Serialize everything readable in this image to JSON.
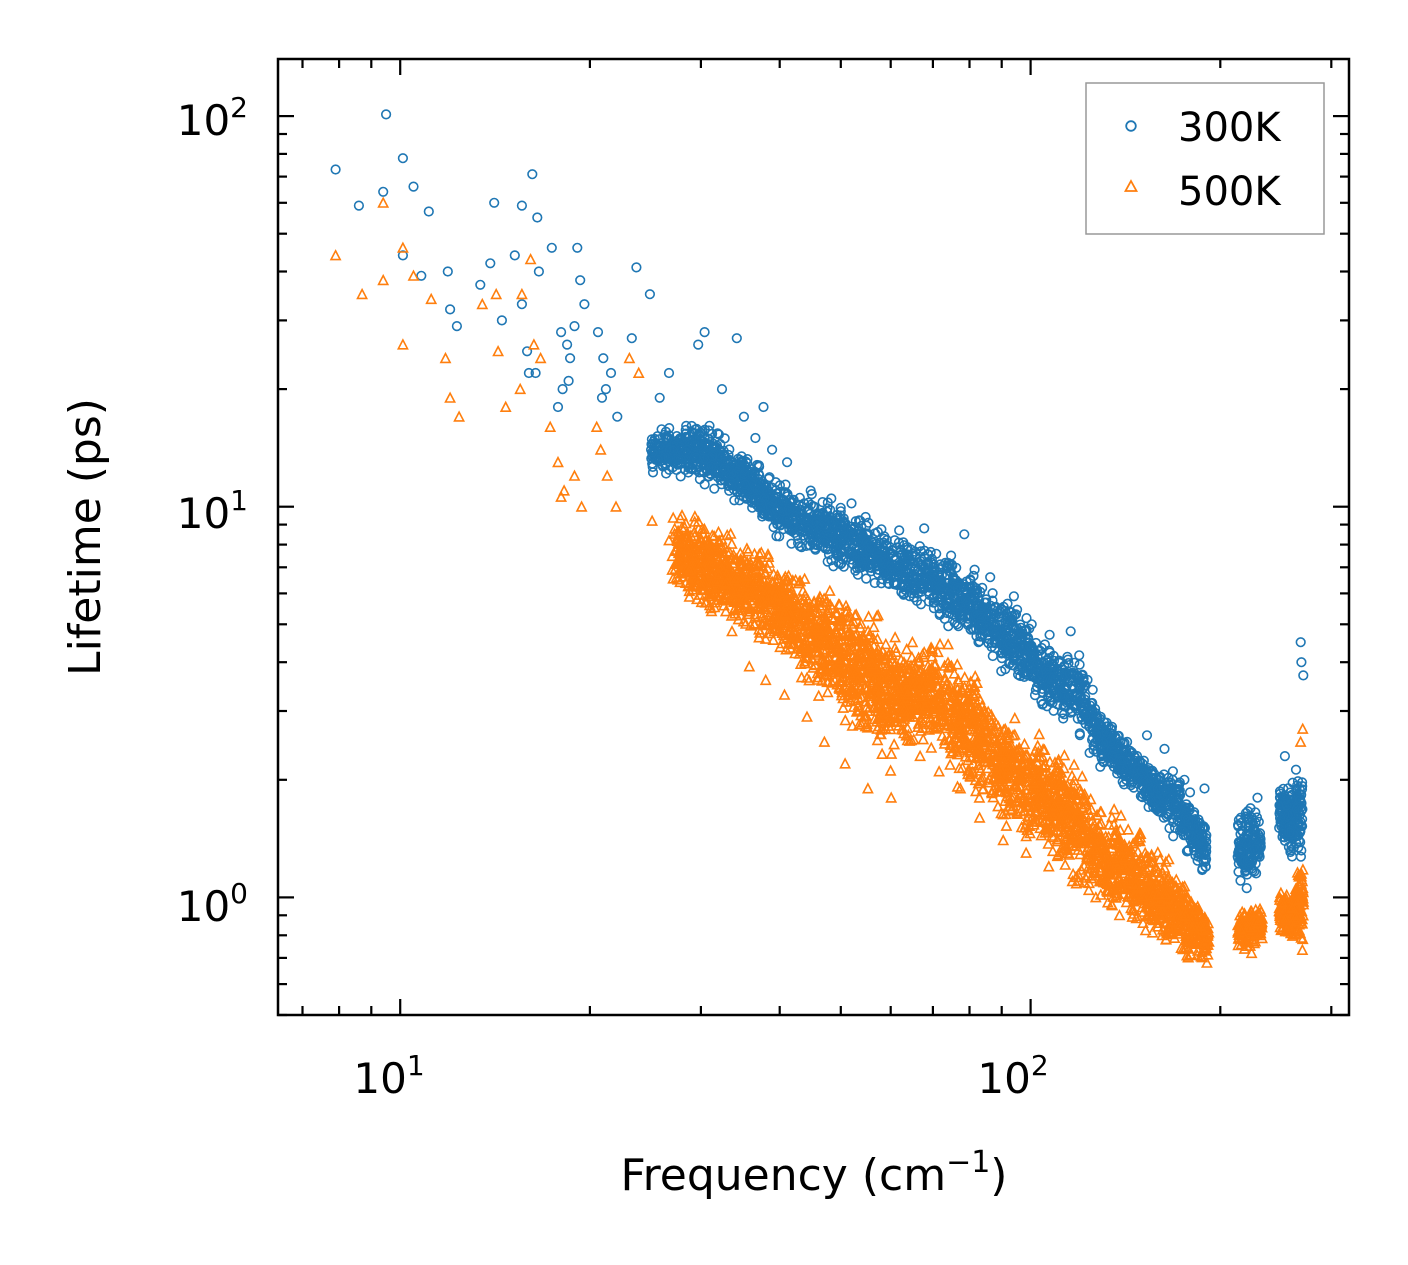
{
  "chart_data": {
    "type": "scatter",
    "title": "",
    "xlabel": "Frequency",
    "xlabel_unit": "(cm",
    "xlabel_unit_exp": "−1",
    "xlabel_unit_close": ")",
    "ylabel": "Lifetime (ps)",
    "xscale": "log",
    "yscale": "log",
    "xlim": [
      6.4,
      320
    ],
    "ylim": [
      0.5,
      140
    ],
    "x_ticks": [
      {
        "value": 10,
        "base": "10",
        "exp": "1"
      },
      {
        "value": 100,
        "base": "10",
        "exp": "2"
      }
    ],
    "y_ticks": [
      {
        "value": 1,
        "base": "10",
        "exp": "0"
      },
      {
        "value": 10,
        "base": "10",
        "exp": "1"
      },
      {
        "value": 100,
        "base": "10",
        "exp": "2"
      }
    ],
    "legend_position": "top-right",
    "series": [
      {
        "name": "300K",
        "marker": "circle-open",
        "color": "#1f77b4",
        "points": [
          [
            7.9,
            73
          ],
          [
            8.6,
            59
          ],
          [
            9.4,
            64
          ],
          [
            9.5,
            101
          ],
          [
            10.1,
            78
          ],
          [
            10.5,
            66
          ],
          [
            11.1,
            57
          ],
          [
            10.1,
            44
          ],
          [
            10.8,
            39
          ],
          [
            11.9,
            40
          ],
          [
            12.0,
            32
          ],
          [
            12.3,
            29
          ],
          [
            13.4,
            37
          ],
          [
            13.9,
            42
          ],
          [
            14.1,
            60
          ],
          [
            14.5,
            30
          ],
          [
            15.2,
            44
          ],
          [
            15.6,
            59
          ],
          [
            15.6,
            33
          ],
          [
            16.2,
            71
          ],
          [
            16.5,
            55
          ],
          [
            16.6,
            40
          ],
          [
            15.9,
            25
          ],
          [
            16.0,
            22
          ],
          [
            16.4,
            22
          ],
          [
            17.4,
            46
          ],
          [
            18.0,
            28
          ],
          [
            18.4,
            26
          ],
          [
            18.6,
            24
          ],
          [
            18.9,
            29
          ],
          [
            19.1,
            46
          ],
          [
            19.3,
            38
          ],
          [
            19.6,
            33
          ],
          [
            18.5,
            21
          ],
          [
            18.1,
            20
          ],
          [
            17.8,
            18
          ],
          [
            20.6,
            28
          ],
          [
            21.0,
            24
          ],
          [
            21.6,
            22
          ],
          [
            21.2,
            20
          ],
          [
            20.9,
            19
          ],
          [
            22.1,
            17
          ],
          [
            23.3,
            27
          ],
          [
            23.7,
            41
          ],
          [
            24.9,
            35
          ],
          [
            26.7,
            22
          ],
          [
            25.8,
            19
          ],
          [
            29.7,
            26
          ],
          [
            30.4,
            28
          ],
          [
            32.4,
            20
          ],
          [
            34.2,
            27
          ],
          [
            35.1,
            17
          ],
          [
            36.6,
            15
          ],
          [
            37.7,
            18
          ],
          [
            38.9,
            14
          ],
          [
            41.1,
            13
          ],
          [
            44.8,
            11
          ],
          [
            48.3,
            10.5
          ],
          [
            52.0,
            10.2
          ],
          [
            55.3,
            9.1
          ],
          [
            61.9,
            8.7
          ],
          [
            67.8,
            8.8
          ],
          [
            74.8,
            7.5
          ],
          [
            78.5,
            8.5
          ],
          [
            81.5,
            6.9
          ],
          [
            86.3,
            6.6
          ],
          [
            94.1,
            5.9
          ],
          [
            100.4,
            5.0
          ],
          [
            107.2,
            4.7
          ],
          [
            115.8,
            4.8
          ],
          [
            120.6,
            3.7
          ],
          [
            125.5,
            3.4
          ],
          [
            132.0,
            2.8
          ],
          [
            142.3,
            2.5
          ],
          [
            153.0,
            2.6
          ],
          [
            163.1,
            2.4
          ],
          [
            175.4,
            2.0
          ],
          [
            188.8,
            1.9
          ],
          [
            215.5,
            1.6
          ],
          [
            229.1,
            1.8
          ],
          [
            253.2,
            2.3
          ],
          [
            268.2,
            4.5
          ],
          [
            268.9,
            4.0
          ],
          [
            270.8,
            3.7
          ]
        ]
      },
      {
        "name": "500K",
        "marker": "triangle-open",
        "color": "#ff7f0e",
        "points": [
          [
            7.9,
            44
          ],
          [
            8.7,
            35
          ],
          [
            9.4,
            60
          ],
          [
            9.4,
            38
          ],
          [
            10.1,
            46
          ],
          [
            10.1,
            26
          ],
          [
            10.5,
            39
          ],
          [
            11.2,
            34
          ],
          [
            11.8,
            24
          ],
          [
            12.0,
            19
          ],
          [
            12.4,
            17
          ],
          [
            13.5,
            33
          ],
          [
            14.2,
            35
          ],
          [
            14.3,
            25
          ],
          [
            14.7,
            18
          ],
          [
            15.5,
            20
          ],
          [
            15.6,
            35
          ],
          [
            16.1,
            43
          ],
          [
            16.3,
            26
          ],
          [
            16.7,
            24
          ],
          [
            17.3,
            16
          ],
          [
            17.8,
            13
          ],
          [
            18.2,
            11
          ],
          [
            18.0,
            10.6
          ],
          [
            18.9,
            12
          ],
          [
            19.4,
            10
          ],
          [
            20.5,
            16
          ],
          [
            20.8,
            14
          ],
          [
            21.3,
            12
          ],
          [
            22.0,
            10
          ],
          [
            23.1,
            24
          ],
          [
            23.9,
            22
          ],
          [
            25.1,
            9.2
          ],
          [
            26.7,
            8.2
          ],
          [
            27.6,
            7.2
          ],
          [
            29.6,
            6.3
          ],
          [
            31.1,
            5.5
          ],
          [
            33.6,
            4.8
          ],
          [
            35.8,
            3.9
          ],
          [
            38.0,
            3.6
          ],
          [
            40.7,
            3.3
          ],
          [
            44.2,
            2.9
          ],
          [
            47.1,
            2.5
          ],
          [
            50.8,
            2.2
          ],
          [
            55.2,
            1.9
          ],
          [
            60.1,
            1.8
          ],
          [
            66.8,
            2.3
          ],
          [
            71.6,
            2.1
          ],
          [
            77.4,
            1.9
          ],
          [
            83.0,
            1.6
          ],
          [
            90.5,
            1.4
          ],
          [
            98.4,
            1.3
          ],
          [
            106.9,
            1.2
          ],
          [
            116.5,
            1.1
          ],
          [
            126.9,
            1.0
          ],
          [
            138.4,
            0.9
          ],
          [
            150.8,
            0.86
          ],
          [
            164.0,
            0.78
          ],
          [
            177.0,
            0.71
          ],
          [
            190.4,
            0.68
          ],
          [
            215.0,
            0.83
          ],
          [
            229.5,
            0.86
          ],
          [
            255.1,
            0.82
          ],
          [
            268.1,
            2.5
          ],
          [
            270.2,
            2.7
          ]
        ]
      }
    ],
    "dense_bands": [
      {
        "series": "300K",
        "x_start": 25,
        "x_end": 190,
        "upper": [
          [
            25,
            16
          ],
          [
            30,
            17
          ],
          [
            35,
            14
          ],
          [
            40,
            12
          ],
          [
            50,
            10.5
          ],
          [
            60,
            8.6
          ],
          [
            70,
            8.3
          ],
          [
            80,
            7.1
          ],
          [
            90,
            6.3
          ],
          [
            100,
            5.2
          ],
          [
            110,
            4.6
          ],
          [
            120,
            4.2
          ],
          [
            130,
            3.1
          ],
          [
            140,
            2.6
          ],
          [
            150,
            2.4
          ],
          [
            160,
            2.2
          ],
          [
            170,
            2.2
          ],
          [
            180,
            1.9
          ],
          [
            190,
            1.6
          ]
        ],
        "lower": [
          [
            25,
            12
          ],
          [
            30,
            11
          ],
          [
            35,
            9.8
          ],
          [
            40,
            8.0
          ],
          [
            50,
            6.8
          ],
          [
            60,
            5.9
          ],
          [
            70,
            5.0
          ],
          [
            80,
            4.4
          ],
          [
            90,
            3.7
          ],
          [
            100,
            3.2
          ],
          [
            110,
            2.8
          ],
          [
            120,
            2.5
          ],
          [
            130,
            2.1
          ],
          [
            140,
            1.9
          ],
          [
            150,
            1.7
          ],
          [
            160,
            1.55
          ],
          [
            170,
            1.35
          ],
          [
            180,
            1.2
          ],
          [
            190,
            1.05
          ]
        ],
        "count": 2600
      },
      {
        "series": "300K",
        "x_start": 213,
        "x_end": 232,
        "upper": [
          [
            213,
            1.7
          ],
          [
            220,
            1.8
          ],
          [
            232,
            1.75
          ]
        ],
        "lower": [
          [
            213,
            1.05
          ],
          [
            220,
            1.0
          ],
          [
            232,
            1.1
          ]
        ],
        "count": 150
      },
      {
        "series": "300K",
        "x_start": 248,
        "x_end": 270,
        "upper": [
          [
            248,
            2.2
          ],
          [
            258,
            2.0
          ],
          [
            270,
            2.4
          ]
        ],
        "lower": [
          [
            248,
            1.3
          ],
          [
            258,
            1.2
          ],
          [
            270,
            1.1
          ]
        ],
        "count": 200
      },
      {
        "series": "500K",
        "x_start": 27,
        "x_end": 192,
        "upper": [
          [
            27,
            10.5
          ],
          [
            32,
            9.2
          ],
          [
            38,
            8.2
          ],
          [
            45,
            6.8
          ],
          [
            52,
            6.2
          ],
          [
            60,
            5.1
          ],
          [
            70,
            5.0
          ],
          [
            80,
            4.2
          ],
          [
            90,
            3.2
          ],
          [
            100,
            2.9
          ],
          [
            110,
            2.6
          ],
          [
            120,
            2.2
          ],
          [
            130,
            1.8
          ],
          [
            140,
            1.7
          ],
          [
            150,
            1.55
          ],
          [
            160,
            1.35
          ],
          [
            170,
            1.25
          ],
          [
            180,
            1.05
          ],
          [
            192,
            0.95
          ]
        ],
        "lower": [
          [
            27,
            6.0
          ],
          [
            32,
            5.0
          ],
          [
            38,
            4.2
          ],
          [
            45,
            3.4
          ],
          [
            52,
            2.6
          ],
          [
            60,
            2.1
          ],
          [
            70,
            2.3
          ],
          [
            80,
            1.75
          ],
          [
            90,
            1.45
          ],
          [
            100,
            1.3
          ],
          [
            110,
            1.15
          ],
          [
            120,
            1.0
          ],
          [
            130,
            0.9
          ],
          [
            140,
            0.82
          ],
          [
            150,
            0.76
          ],
          [
            160,
            0.72
          ],
          [
            170,
            0.7
          ],
          [
            180,
            0.68
          ],
          [
            192,
            0.67
          ]
        ],
        "count": 3200
      },
      {
        "series": "500K",
        "x_start": 213,
        "x_end": 233,
        "upper": [
          [
            213,
            0.92
          ],
          [
            222,
            1.0
          ],
          [
            233,
            0.95
          ]
        ],
        "lower": [
          [
            213,
            0.72
          ],
          [
            222,
            0.7
          ],
          [
            233,
            0.74
          ]
        ],
        "count": 140
      },
      {
        "series": "500K",
        "x_start": 248,
        "x_end": 271,
        "upper": [
          [
            248,
            1.1
          ],
          [
            258,
            1.0
          ],
          [
            271,
            1.35
          ]
        ],
        "lower": [
          [
            248,
            0.82
          ],
          [
            258,
            0.78
          ],
          [
            271,
            0.72
          ]
        ],
        "count": 220
      }
    ]
  }
}
